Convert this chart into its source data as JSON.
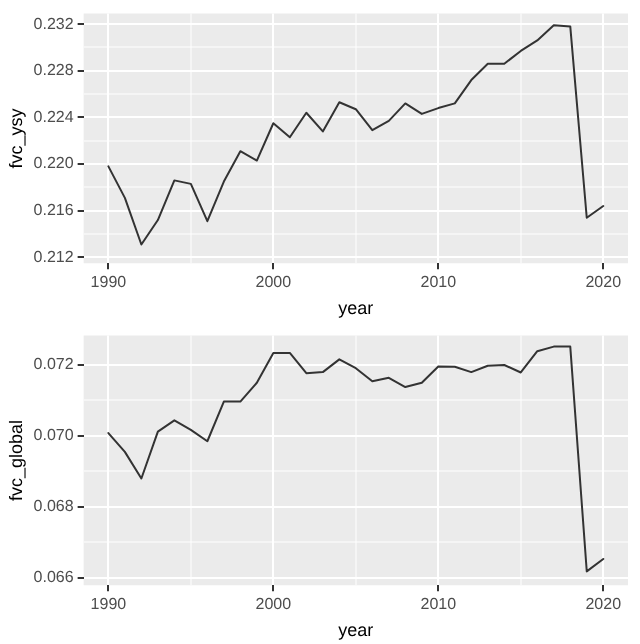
{
  "chart_data": [
    {
      "type": "line",
      "xlabel": "year",
      "ylabel": "fvc_ysy",
      "x": [
        1990,
        1991,
        1992,
        1993,
        1994,
        1995,
        1996,
        1997,
        1998,
        1999,
        2000,
        2001,
        2002,
        2003,
        2004,
        2005,
        2006,
        2007,
        2008,
        2009,
        2010,
        2011,
        2012,
        2013,
        2014,
        2015,
        2016,
        2017,
        2018,
        2019,
        2020
      ],
      "series": [
        {
          "color": "#333333",
          "values": [
            0.2198,
            0.2171,
            0.2131,
            0.2152,
            0.2186,
            0.2183,
            0.2151,
            0.2185,
            0.2211,
            0.2203,
            0.2235,
            0.2223,
            0.2244,
            0.2228,
            0.2253,
            0.2247,
            0.2229,
            0.2237,
            0.2252,
            0.2243,
            0.2248,
            0.2252,
            0.2272,
            0.2286,
            0.2286,
            0.2297,
            0.2306,
            0.2319,
            0.2318,
            0.2154,
            0.2164
          ]
        }
      ],
      "xlim": [
        1988.5,
        2021.5
      ],
      "xticks": [
        1990,
        {
          "value": 1995,
          "label": null
        },
        2000,
        {
          "value": 2005,
          "label": null
        },
        2010,
        {
          "value": 2015,
          "label": null
        },
        2020
      ],
      "ylim": [
        0.2115,
        0.2329
      ],
      "yticks": [
        0.212,
        {
          "value": 0.214,
          "label": null
        },
        0.216,
        {
          "value": 0.218,
          "label": null
        },
        {
          "value": 0.22,
          "label": "0.220"
        },
        {
          "value": 0.222,
          "label": null
        },
        0.224,
        {
          "value": 0.226,
          "label": null
        },
        0.228,
        {
          "value": 0.23,
          "label": null
        },
        0.232
      ],
      "grid": true,
      "legend": false,
      "marker": "none",
      "line_style": "solid"
    },
    {
      "type": "line",
      "xlabel": "year",
      "ylabel": "fvc_global",
      "x": [
        1990,
        1991,
        1992,
        1993,
        1994,
        1995,
        1996,
        1997,
        1998,
        1999,
        2000,
        2001,
        2002,
        2003,
        2004,
        2005,
        2006,
        2007,
        2008,
        2009,
        2010,
        2011,
        2012,
        2013,
        2014,
        2015,
        2016,
        2017,
        2018,
        2019,
        2020
      ],
      "series": [
        {
          "color": "#333333",
          "values": [
            0.07008,
            0.06955,
            0.0688,
            0.07012,
            0.07044,
            0.07017,
            0.06985,
            0.07097,
            0.07097,
            0.0715,
            0.07234,
            0.07234,
            0.07177,
            0.0718,
            0.07216,
            0.07191,
            0.07154,
            0.07164,
            0.07138,
            0.0715,
            0.07196,
            0.07195,
            0.0718,
            0.07198,
            0.072,
            0.07179,
            0.07239,
            0.07252,
            0.07252,
            0.06618,
            0.06653
          ]
        }
      ],
      "xlim": [
        1988.5,
        2021.5
      ],
      "xticks": [
        1990,
        {
          "value": 1995,
          "label": null
        },
        2000,
        {
          "value": 2005,
          "label": null
        },
        2010,
        {
          "value": 2015,
          "label": null
        },
        2020
      ],
      "ylim": [
        0.06579,
        0.07283
      ],
      "yticks": [
        0.066,
        {
          "value": 0.067,
          "label": null
        },
        0.068,
        {
          "value": 0.069,
          "label": null
        },
        {
          "value": 0.07,
          "label": "0.070"
        },
        {
          "value": 0.071,
          "label": null
        },
        0.072
      ],
      "grid": true,
      "legend": false,
      "marker": "none",
      "line_style": "solid"
    }
  ]
}
